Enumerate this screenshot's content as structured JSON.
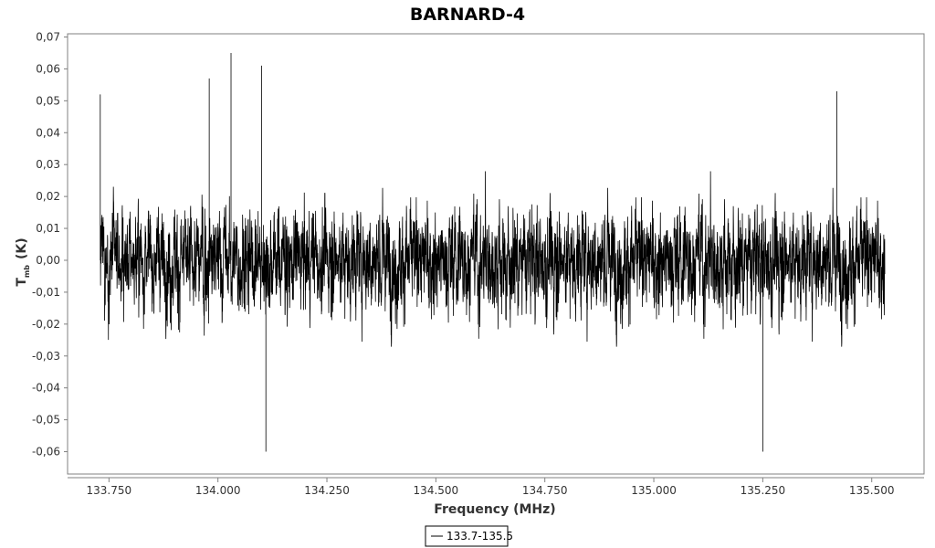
{
  "chart_data": {
    "type": "line",
    "title": "BARNARD-4",
    "xlabel": "Frequency (MHz)",
    "ylabel_main": "T",
    "ylabel_sub": "mb",
    "ylabel_unit": "(K)",
    "xlim": [
      133.655,
      135.62
    ],
    "ylim": [
      -0.067,
      0.071
    ],
    "x_range": [
      133.73,
      135.53
    ],
    "x_ticks": [
      "133.750",
      "134.000",
      "134.250",
      "134.500",
      "134.750",
      "135.000",
      "135.250",
      "135.500"
    ],
    "x_tick_values": [
      133.75,
      134.0,
      134.25,
      134.5,
      134.75,
      135.0,
      135.25,
      135.5
    ],
    "y_ticks": [
      "0,07",
      "0,06",
      "0,05",
      "0,04",
      "0,03",
      "0,02",
      "0,01",
      "0,00",
      "-0,01",
      "-0,02",
      "-0,03",
      "-0,04",
      "-0,05",
      "-0,06"
    ],
    "y_tick_values": [
      0.07,
      0.06,
      0.05,
      0.04,
      0.03,
      0.02,
      0.01,
      0.0,
      -0.01,
      -0.02,
      -0.03,
      -0.04,
      -0.05,
      -0.06
    ],
    "noise_rms": 0.015,
    "peaks": [
      {
        "x": 134.03,
        "y": 0.065
      },
      {
        "x": 134.1,
        "y": 0.061
      },
      {
        "x": 133.98,
        "y": 0.057
      },
      {
        "x": 134.11,
        "y": -0.06
      },
      {
        "x": 135.25,
        "y": -0.06
      },
      {
        "x": 133.73,
        "y": 0.052
      },
      {
        "x": 135.42,
        "y": 0.053
      }
    ],
    "grid": false,
    "legend_position": "bottom-center",
    "series": [
      {
        "name": "133.7-135.5",
        "color": "#000000"
      }
    ]
  }
}
